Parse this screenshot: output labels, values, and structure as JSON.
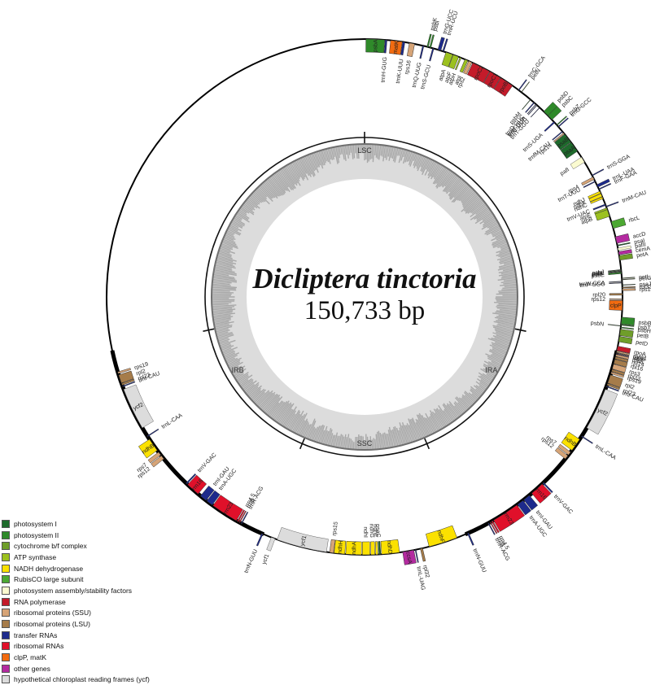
{
  "title": "Dicliptera tinctoria",
  "genome_size": "150,733 bp",
  "regions": [
    {
      "label": "LSC",
      "angle": 0
    },
    {
      "label": "IRA",
      "angle": 120
    },
    {
      "label": "SSC",
      "angle": 180
    },
    {
      "label": "IRB",
      "angle": 240
    }
  ],
  "categories": [
    {
      "key": "psI",
      "label": "photosystem I",
      "color": "#1e6b2c"
    },
    {
      "key": "psII",
      "label": "photosystem II",
      "color": "#2f8a2a"
    },
    {
      "key": "cyt",
      "label": "cytochrome b/f complex",
      "color": "#6f9e2a"
    },
    {
      "key": "atp",
      "label": "ATP synthase",
      "color": "#9cc11f"
    },
    {
      "key": "ndh",
      "label": "NADH dehydrogenase",
      "color": "#fbe100"
    },
    {
      "key": "rbc",
      "label": "RubisCO large subunit",
      "color": "#4ca832"
    },
    {
      "key": "asm",
      "label": "photosystem assembly/stability factors",
      "color": "#fbfbd0"
    },
    {
      "key": "rpo",
      "label": "RNA polymerase",
      "color": "#c41b2a"
    },
    {
      "key": "ssu",
      "label": "ribosomal proteins (SSU)",
      "color": "#d6a477"
    },
    {
      "key": "lsu",
      "label": "ribosomal proteins (LSU)",
      "color": "#a67c4a"
    },
    {
      "key": "trna",
      "label": "transfer RNAs",
      "color": "#1d2a8c"
    },
    {
      "key": "rrna",
      "label": "ribosomal RNAs",
      "color": "#e0102a"
    },
    {
      "key": "clp",
      "label": "clpP, matK",
      "color": "#f26b10"
    },
    {
      "key": "other",
      "label": "other genes",
      "color": "#b42aa0"
    },
    {
      "key": "ycf",
      "label": "hypothetical chloroplast reading frames (ycf)",
      "color": "#dcdcdc"
    }
  ],
  "genes": [
    {
      "name": "psbA",
      "cat": "psII",
      "start": 0.3,
      "end": 4.5,
      "strand": "in"
    },
    {
      "name": "trnH-GUG",
      "cat": "trna",
      "start": 4.6,
      "end": 5.0,
      "strand": "in"
    },
    {
      "name": "matK",
      "cat": "clp",
      "start": 5.8,
      "end": 8.4,
      "strand": "in"
    },
    {
      "name": "trnK-UUU",
      "cat": "trna",
      "start": 8.5,
      "end": 9.0,
      "strand": "in"
    },
    {
      "name": "rps16",
      "cat": "ssu",
      "start": 10.0,
      "end": 11.2,
      "strand": "in"
    },
    {
      "name": "trnQ-UUG",
      "cat": "trna",
      "start": 13.0,
      "end": 13.3,
      "strand": "in"
    },
    {
      "name": "psbK",
      "cat": "psII",
      "start": 14.0,
      "end": 14.3,
      "strand": "out"
    },
    {
      "name": "psbI",
      "cat": "psII",
      "start": 14.6,
      "end": 14.9,
      "strand": "out"
    },
    {
      "name": "trnS-GCU",
      "cat": "trna",
      "start": 15.3,
      "end": 15.6,
      "strand": "in"
    },
    {
      "name": "trnG-UCC",
      "cat": "trna",
      "start": 16.5,
      "end": 17.2,
      "strand": "out"
    },
    {
      "name": "trnR-UCU",
      "cat": "trna",
      "start": 17.6,
      "end": 17.9,
      "strand": "out"
    },
    {
      "name": "atpA",
      "cat": "atp",
      "start": 18.4,
      "end": 20.0,
      "strand": "in"
    },
    {
      "name": "atpF",
      "cat": "atp",
      "start": 20.1,
      "end": 21.4,
      "strand": "in"
    },
    {
      "name": "atpH",
      "cat": "atp",
      "start": 21.7,
      "end": 22.0,
      "strand": "in"
    },
    {
      "name": "atpI",
      "cat": "atp",
      "start": 22.9,
      "end": 23.6,
      "strand": "in"
    },
    {
      "name": "rps2",
      "cat": "ssu",
      "start": 23.8,
      "end": 24.6,
      "strand": "in"
    },
    {
      "name": "rpoC2",
      "cat": "rpo",
      "start": 24.8,
      "end": 29.0,
      "strand": "in"
    },
    {
      "name": "rpoC1",
      "cat": "rpo",
      "start": 29.1,
      "end": 31.8,
      "strand": "in"
    },
    {
      "name": "rpoB",
      "cat": "rpo",
      "start": 31.9,
      "end": 35.0,
      "strand": "in"
    },
    {
      "name": "trnC-GCA",
      "cat": "trna",
      "start": 36.6,
      "end": 36.8,
      "strand": "out"
    },
    {
      "name": "petN",
      "cat": "cyt",
      "start": 37.4,
      "end": 37.5,
      "strand": "out"
    },
    {
      "name": "psbM",
      "cat": "psII",
      "start": 40.0,
      "end": 40.1,
      "strand": "in"
    },
    {
      "name": "trnD-GUC",
      "cat": "trna",
      "start": 41.0,
      "end": 41.2,
      "strand": "in"
    },
    {
      "name": "trnY-GUA",
      "cat": "trna",
      "start": 41.6,
      "end": 41.7,
      "strand": "in"
    },
    {
      "name": "trnE-UUC",
      "cat": "trna",
      "start": 41.9,
      "end": 42.0,
      "strand": "in"
    },
    {
      "name": "trnT-GGU",
      "cat": "trna",
      "start": 42.7,
      "end": 42.8,
      "strand": "in"
    },
    {
      "name": "psbD",
      "cat": "psII",
      "start": 44.0,
      "end": 45.3,
      "strand": "out"
    },
    {
      "name": "psbC",
      "cat": "psII",
      "start": 45.3,
      "end": 46.6,
      "strand": "out"
    },
    {
      "name": "trnS-UGA",
      "cat": "trna",
      "start": 47.2,
      "end": 47.5,
      "strand": "in"
    },
    {
      "name": "psbZ",
      "cat": "psII",
      "start": 48.1,
      "end": 48.3,
      "strand": "out"
    },
    {
      "name": "trnG-GCC",
      "cat": "trna",
      "start": 48.6,
      "end": 48.8,
      "strand": "out"
    },
    {
      "name": "trnfM-CAU",
      "cat": "trna",
      "start": 50.0,
      "end": 50.2,
      "strand": "in"
    },
    {
      "name": "rps14",
      "cat": "ssu",
      "start": 50.5,
      "end": 50.8,
      "strand": "in"
    },
    {
      "name": "psaB",
      "cat": "psI",
      "start": 50.9,
      "end": 53.1,
      "strand": "in"
    },
    {
      "name": "psaA",
      "cat": "psI",
      "start": 53.2,
      "end": 55.6,
      "strand": "in"
    },
    {
      "name": "pafI",
      "cat": "asm",
      "start": 57.2,
      "end": 58.5,
      "strand": "in"
    },
    {
      "name": "trnS-GGA",
      "cat": "trna",
      "start": 61.8,
      "end": 62.0,
      "strand": "out"
    },
    {
      "name": "rps4",
      "cat": "ssu",
      "start": 62.3,
      "end": 62.9,
      "strand": "in"
    },
    {
      "name": "trnT-UGU",
      "cat": "trna",
      "start": 63.3,
      "end": 63.5,
      "strand": "in"
    },
    {
      "name": "trnL-UAA",
      "cat": "trna",
      "start": 64.2,
      "end": 64.8,
      "strand": "out"
    },
    {
      "name": "trnF-GAA",
      "cat": "trna",
      "start": 65.2,
      "end": 65.4,
      "strand": "out"
    },
    {
      "name": "ndhJ",
      "cat": "ndh",
      "start": 65.8,
      "end": 66.3,
      "strand": "in"
    },
    {
      "name": "ndhK",
      "cat": "ndh",
      "start": 66.4,
      "end": 67.1,
      "strand": "in"
    },
    {
      "name": "ndhC",
      "cat": "ndh",
      "start": 67.2,
      "end": 67.6,
      "strand": "in"
    },
    {
      "name": "trnV-UAC",
      "cat": "trna",
      "start": 68.9,
      "end": 69.2,
      "strand": "in"
    },
    {
      "name": "trnM-CAU",
      "cat": "trna",
      "start": 69.4,
      "end": 69.6,
      "strand": "out"
    },
    {
      "name": "atpE",
      "cat": "atp",
      "start": 69.8,
      "end": 70.2,
      "strand": "in"
    },
    {
      "name": "atpB",
      "cat": "atp",
      "start": 70.2,
      "end": 71.8,
      "strand": "in"
    },
    {
      "name": "rbcL",
      "cat": "rbc",
      "start": 73.0,
      "end": 74.6,
      "strand": "out"
    },
    {
      "name": "accD",
      "cat": "other",
      "start": 76.5,
      "end": 78.0,
      "strand": "out"
    },
    {
      "name": "psaI",
      "cat": "psI",
      "start": 78.4,
      "end": 78.6,
      "strand": "out"
    },
    {
      "name": "pafII",
      "cat": "asm",
      "start": 79.1,
      "end": 79.6,
      "strand": "out"
    },
    {
      "name": "cemA",
      "cat": "other",
      "start": 79.9,
      "end": 80.6,
      "strand": "out"
    },
    {
      "name": "petA",
      "cat": "cyt",
      "start": 80.8,
      "end": 81.8,
      "strand": "out"
    },
    {
      "name": "psbJ",
      "cat": "psII",
      "start": 83.9,
      "end": 84.0,
      "strand": "in"
    },
    {
      "name": "psbL",
      "cat": "psII",
      "start": 84.1,
      "end": 84.2,
      "strand": "in"
    },
    {
      "name": "psbF",
      "cat": "psII",
      "start": 84.3,
      "end": 84.4,
      "strand": "in"
    },
    {
      "name": "psbE",
      "cat": "psII",
      "start": 84.5,
      "end": 84.8,
      "strand": "in"
    },
    {
      "name": "petL",
      "cat": "cyt",
      "start": 85.8,
      "end": 85.9,
      "strand": "out"
    },
    {
      "name": "petG",
      "cat": "cyt",
      "start": 86.1,
      "end": 86.2,
      "strand": "out"
    },
    {
      "name": "trnW-CCA",
      "cat": "trna",
      "start": 86.5,
      "end": 86.6,
      "strand": "in"
    },
    {
      "name": "trnP-UGG",
      "cat": "trna",
      "start": 86.8,
      "end": 86.9,
      "strand": "in"
    },
    {
      "name": "psaJ",
      "cat": "psI",
      "start": 87.3,
      "end": 87.4,
      "strand": "out"
    },
    {
      "name": "rpl33",
      "cat": "lsu",
      "start": 87.8,
      "end": 88.0,
      "strand": "out"
    },
    {
      "name": "rps18",
      "cat": "ssu",
      "start": 88.2,
      "end": 88.6,
      "strand": "out"
    },
    {
      "name": "rpl20",
      "cat": "lsu",
      "start": 89.2,
      "end": 89.6,
      "strand": "in"
    },
    {
      "name": "rps12",
      "cat": "ssu",
      "start": 90.4,
      "end": 90.6,
      "strand": "in"
    },
    {
      "name": "clpP",
      "cat": "clp",
      "start": 90.8,
      "end": 93.0,
      "strand": "in"
    },
    {
      "name": "psbB",
      "cat": "psII",
      "start": 94.5,
      "end": 96.0,
      "strand": "out"
    },
    {
      "name": "psbT",
      "cat": "psII",
      "start": 96.1,
      "end": 96.3,
      "strand": "out"
    },
    {
      "name": "psbN",
      "cat": "psII",
      "start": 96.4,
      "end": 96.5,
      "strand": "in"
    },
    {
      "name": "psbH",
      "cat": "psII",
      "start": 96.7,
      "end": 96.9,
      "strand": "out"
    },
    {
      "name": "petB",
      "cat": "cyt",
      "start": 97.2,
      "end": 98.6,
      "strand": "out"
    },
    {
      "name": "petD",
      "cat": "cyt",
      "start": 98.8,
      "end": 100.0,
      "strand": "out"
    },
    {
      "name": "rpoA",
      "cat": "rpo",
      "start": 101.0,
      "end": 102.0,
      "strand": "out"
    },
    {
      "name": "rps11",
      "cat": "ssu",
      "start": 102.1,
      "end": 102.4,
      "strand": "out"
    },
    {
      "name": "rpl36",
      "cat": "lsu",
      "start": 102.5,
      "end": 102.6,
      "strand": "out"
    },
    {
      "name": "infA",
      "cat": "other",
      "start": 102.7,
      "end": 102.8,
      "strand": "out"
    },
    {
      "name": "rps8",
      "cat": "ssu",
      "start": 102.9,
      "end": 103.3,
      "strand": "out"
    },
    {
      "name": "rpl14",
      "cat": "lsu",
      "start": 103.4,
      "end": 103.9,
      "strand": "out"
    },
    {
      "name": "rpl16",
      "cat": "lsu",
      "start": 104.0,
      "end": 105.0,
      "strand": "out"
    },
    {
      "name": "rps3",
      "cat": "ssu",
      "start": 105.1,
      "end": 106.2,
      "strand": "out"
    },
    {
      "name": "rpl22",
      "cat": "lsu",
      "start": 106.3,
      "end": 106.8,
      "strand": "out"
    },
    {
      "name": "rps19",
      "cat": "ssu",
      "start": 106.9,
      "end": 107.3,
      "strand": "out"
    },
    {
      "name": "rpl2",
      "cat": "lsu",
      "start": 107.6,
      "end": 109.5,
      "strand": "out"
    },
    {
      "name": "rpl23",
      "cat": "lsu",
      "start": 109.6,
      "end": 110.0,
      "strand": "out"
    },
    {
      "name": "trnI-CAU",
      "cat": "trna",
      "start": 110.2,
      "end": 110.4,
      "strand": "out"
    },
    {
      "name": "ycf2",
      "cat": "ycf",
      "start": 111.0,
      "end": 120.5,
      "strand": "out"
    },
    {
      "name": "trnL-CAA",
      "cat": "trna",
      "start": 122.6,
      "end": 122.8,
      "strand": "out"
    },
    {
      "name": "ndhB",
      "cat": "ndh",
      "start": 123.5,
      "end": 126.5,
      "strand": "in"
    },
    {
      "name": "rps7",
      "cat": "ssu",
      "start": 127.0,
      "end": 127.8,
      "strand": "in"
    },
    {
      "name": "rps12",
      "cat": "ssu",
      "start": 128.0,
      "end": 128.9,
      "strand": "in"
    },
    {
      "name": "trnV-GAC",
      "cat": "trna",
      "start": 136.0,
      "end": 136.3,
      "strand": "out"
    },
    {
      "name": "rrn16",
      "cat": "rrna",
      "start": 136.5,
      "end": 139.6,
      "strand": "out"
    },
    {
      "name": "trnI-GAU",
      "cat": "trna",
      "start": 140.3,
      "end": 141.9,
      "strand": "out"
    },
    {
      "name": "trnA-UGC",
      "cat": "trna",
      "start": 142.1,
      "end": 143.6,
      "strand": "out"
    },
    {
      "name": "rrn23",
      "cat": "rrna",
      "start": 143.8,
      "end": 150.0,
      "strand": "out"
    },
    {
      "name": "rrn4.5",
      "cat": "rrna",
      "start": 150.2,
      "end": 150.5,
      "strand": "out"
    },
    {
      "name": "rrn5",
      "cat": "rrna",
      "start": 150.7,
      "end": 150.9,
      "strand": "out"
    },
    {
      "name": "trnR-ACG",
      "cat": "trna",
      "start": 151.2,
      "end": 151.4,
      "strand": "out"
    },
    {
      "name": "trnN-GUU",
      "cat": "trna",
      "start": 156.2,
      "end": 156.5,
      "strand": "out"
    },
    {
      "name": "ndhF",
      "cat": "ndh",
      "start": 159.0,
      "end": 165.5,
      "strand": "in"
    },
    {
      "name": "rpl32",
      "cat": "lsu",
      "start": 167.0,
      "end": 167.5,
      "strand": "out"
    },
    {
      "name": "trnL-UAG",
      "cat": "trna",
      "start": 168.5,
      "end": 168.7,
      "strand": "out"
    },
    {
      "name": "ccsA",
      "cat": "other",
      "start": 169.0,
      "end": 171.5,
      "strand": "out"
    },
    {
      "name": "ndhD",
      "cat": "ndh",
      "start": 172.2,
      "end": 176.2,
      "strand": "in"
    },
    {
      "name": "psaC",
      "cat": "psI",
      "start": 176.4,
      "end": 176.8,
      "strand": "in"
    },
    {
      "name": "ndhE",
      "cat": "ndh",
      "start": 177.0,
      "end": 177.5,
      "strand": "in"
    },
    {
      "name": "ndhG",
      "cat": "ndh",
      "start": 177.7,
      "end": 178.6,
      "strand": "in"
    },
    {
      "name": "ndhI",
      "cat": "ndh",
      "start": 178.8,
      "end": 180.5,
      "strand": "in"
    },
    {
      "name": "ndhA",
      "cat": "ndh",
      "start": 180.7,
      "end": 184.2,
      "strand": "in"
    },
    {
      "name": "ndhH",
      "cat": "ndh",
      "start": 184.4,
      "end": 186.8,
      "strand": "in"
    },
    {
      "name": "rps15",
      "cat": "ssu",
      "start": 186.9,
      "end": 187.8,
      "strand": "in"
    },
    {
      "name": "ycf1",
      "cat": "ycf",
      "start": 188.5,
      "end": 199.8,
      "strand": "in"
    },
    {
      "name": "ycf1",
      "cat": "ycf",
      "start": 200.3,
      "end": 201.2,
      "strand": "out"
    },
    {
      "name": "trnN-GUU",
      "cat": "trna",
      "start": 203.2,
      "end": 203.5,
      "strand": "out"
    },
    {
      "name": "trnR-ACG",
      "cat": "trna",
      "start": 208.4,
      "end": 208.6,
      "strand": "in"
    },
    {
      "name": "rrn5",
      "cat": "rrna",
      "start": 208.9,
      "end": 209.1,
      "strand": "in"
    },
    {
      "name": "rrn4.5",
      "cat": "rrna",
      "start": 209.3,
      "end": 209.6,
      "strand": "in"
    },
    {
      "name": "rrn23",
      "cat": "rrna",
      "start": 209.8,
      "end": 216.0,
      "strand": "in"
    },
    {
      "name": "trnA-UGC",
      "cat": "trna",
      "start": 216.2,
      "end": 217.7,
      "strand": "in"
    },
    {
      "name": "trnI-GAU",
      "cat": "trna",
      "start": 217.9,
      "end": 219.5,
      "strand": "in"
    },
    {
      "name": "rrn16",
      "cat": "rrna",
      "start": 220.2,
      "end": 223.3,
      "strand": "in"
    },
    {
      "name": "trnV-GAC",
      "cat": "trna",
      "start": 223.5,
      "end": 223.8,
      "strand": "in"
    },
    {
      "name": "rps12",
      "cat": "ssu",
      "start": 231.1,
      "end": 232.0,
      "strand": "out"
    },
    {
      "name": "rps7",
      "cat": "ssu",
      "start": 232.2,
      "end": 233.0,
      "strand": "out"
    },
    {
      "name": "ndhB",
      "cat": "ndh",
      "start": 233.5,
      "end": 236.5,
      "strand": "out"
    },
    {
      "name": "trnL-CAA",
      "cat": "trna",
      "start": 237.2,
      "end": 237.4,
      "strand": "in"
    },
    {
      "name": "ycf2",
      "cat": "ycf",
      "start": 239.5,
      "end": 249.0,
      "strand": "in"
    },
    {
      "name": "trnI-CAU",
      "cat": "trna",
      "start": 249.6,
      "end": 249.8,
      "strand": "in"
    },
    {
      "name": "rpl23",
      "cat": "lsu",
      "start": 250.0,
      "end": 250.4,
      "strand": "in"
    },
    {
      "name": "rpl2",
      "cat": "lsu",
      "start": 250.5,
      "end": 252.4,
      "strand": "in"
    },
    {
      "name": "rps19",
      "cat": "ssu",
      "start": 252.7,
      "end": 253.1,
      "strand": "in"
    }
  ]
}
